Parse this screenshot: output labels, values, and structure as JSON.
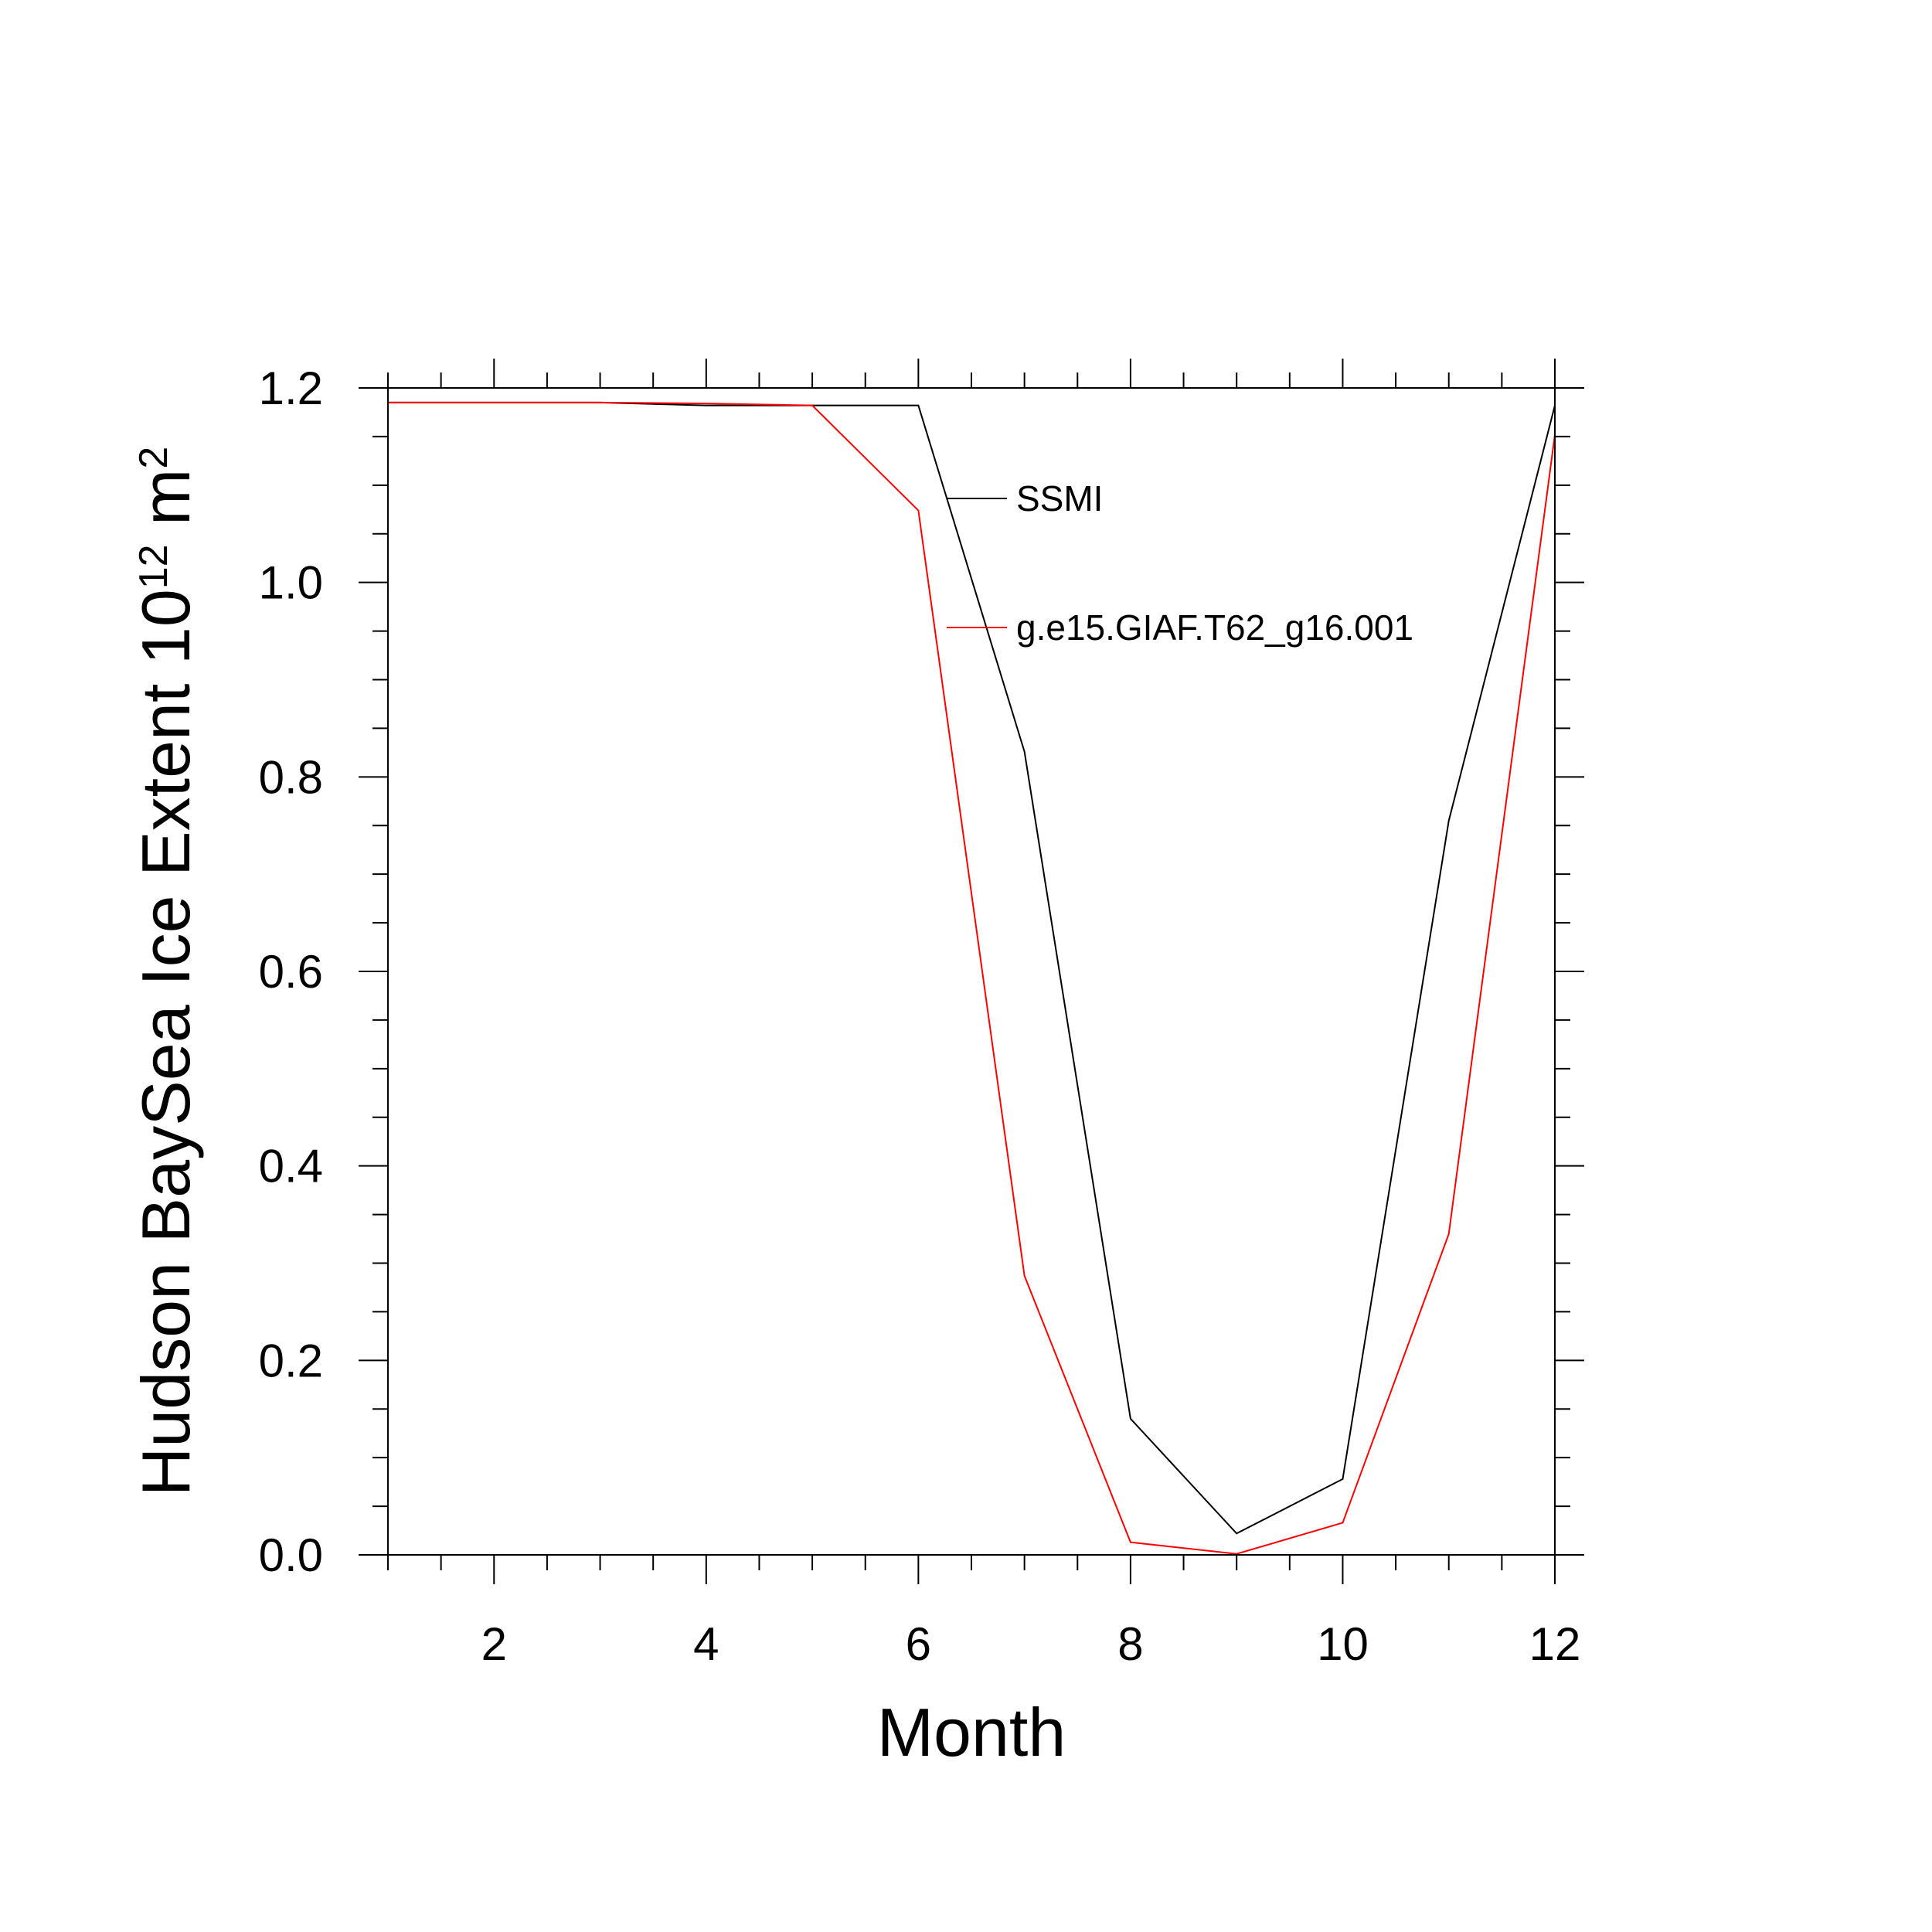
{
  "chart_data": {
    "type": "line",
    "xlabel": "Month",
    "ylabel": {
      "prefix": "Hudson BaySea Ice Extent 10",
      "superscript": "12",
      "unit": " m",
      "unit_superscript": "2"
    },
    "xlim": [
      1,
      12
    ],
    "ylim": [
      0,
      1.2
    ],
    "x_ticks": [
      2,
      4,
      6,
      8,
      10,
      12
    ],
    "x_tick_labels": [
      "2",
      "4",
      "6",
      "8",
      "10",
      "12"
    ],
    "y_ticks": [
      0,
      0.2,
      0.4,
      0.6,
      0.8,
      1.0,
      1.2
    ],
    "y_tick_labels": [
      "0.0",
      "0.2",
      "0.4",
      "0.6",
      "0.8",
      "1.0",
      "1.2"
    ],
    "x": [
      1,
      2,
      3,
      4,
      5,
      6,
      7,
      8,
      9,
      10,
      11,
      12
    ],
    "series": [
      {
        "name": "SSMI",
        "color": "#000000",
        "values": [
          1.185,
          1.185,
          1.185,
          1.182,
          1.182,
          1.182,
          0.826,
          0.14,
          0.022,
          0.078,
          0.755,
          1.182
        ]
      },
      {
        "name": "g.e15.GIAF.T62_g16.001",
        "color": "#ff0000",
        "values": [
          1.185,
          1.185,
          1.185,
          1.184,
          1.182,
          1.074,
          0.287,
          0.013,
          0.001,
          0.033,
          0.33,
          1.152
        ]
      }
    ],
    "grid": false,
    "legend_position": "top-right"
  }
}
